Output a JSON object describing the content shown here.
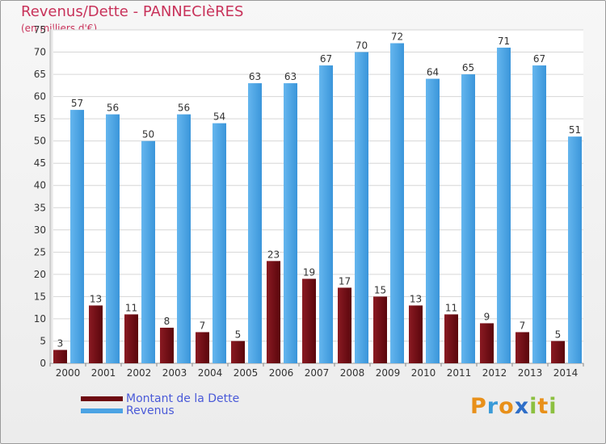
{
  "title": "Revenus/Dette - PANNECIèRES",
  "subtitle": "(en milliers d'€)",
  "logo": {
    "letters": [
      "P",
      "r",
      "o",
      "x",
      "i",
      "t",
      "i"
    ],
    "colors": [
      "#e8901a",
      "#3a9bd8",
      "#e8901a",
      "#2e6ec8",
      "#8cc040",
      "#e8901a",
      "#8cc040"
    ]
  },
  "legend": [
    {
      "label": "Montant de la Dette",
      "color": "#6e0a12"
    },
    {
      "label": "Revenus",
      "color": "#4ba3e4"
    }
  ],
  "chart_data": {
    "type": "bar",
    "title": "Revenus/Dette - PANNECIèRES",
    "ylabel": "(en milliers d'€)",
    "ylim": [
      0,
      75
    ],
    "yticks": [
      0,
      5,
      10,
      15,
      20,
      25,
      30,
      35,
      40,
      45,
      50,
      55,
      60,
      65,
      70,
      75
    ],
    "grid": true,
    "categories": [
      "2000",
      "2001",
      "2002",
      "2003",
      "2004",
      "2005",
      "2006",
      "2007",
      "2008",
      "2009",
      "2010",
      "2011",
      "2012",
      "2013",
      "2014"
    ],
    "series": [
      {
        "name": "Montant de la Dette",
        "color": "#6e0a12",
        "values": [
          3,
          13,
          11,
          8,
          7,
          5,
          23,
          19,
          17,
          15,
          13,
          11,
          9,
          7,
          5
        ]
      },
      {
        "name": "Revenus",
        "color": "#4ba3e4",
        "values": [
          57,
          56,
          50,
          56,
          54,
          63,
          63,
          67,
          70,
          72,
          64,
          65,
          71,
          67,
          51
        ]
      }
    ]
  }
}
